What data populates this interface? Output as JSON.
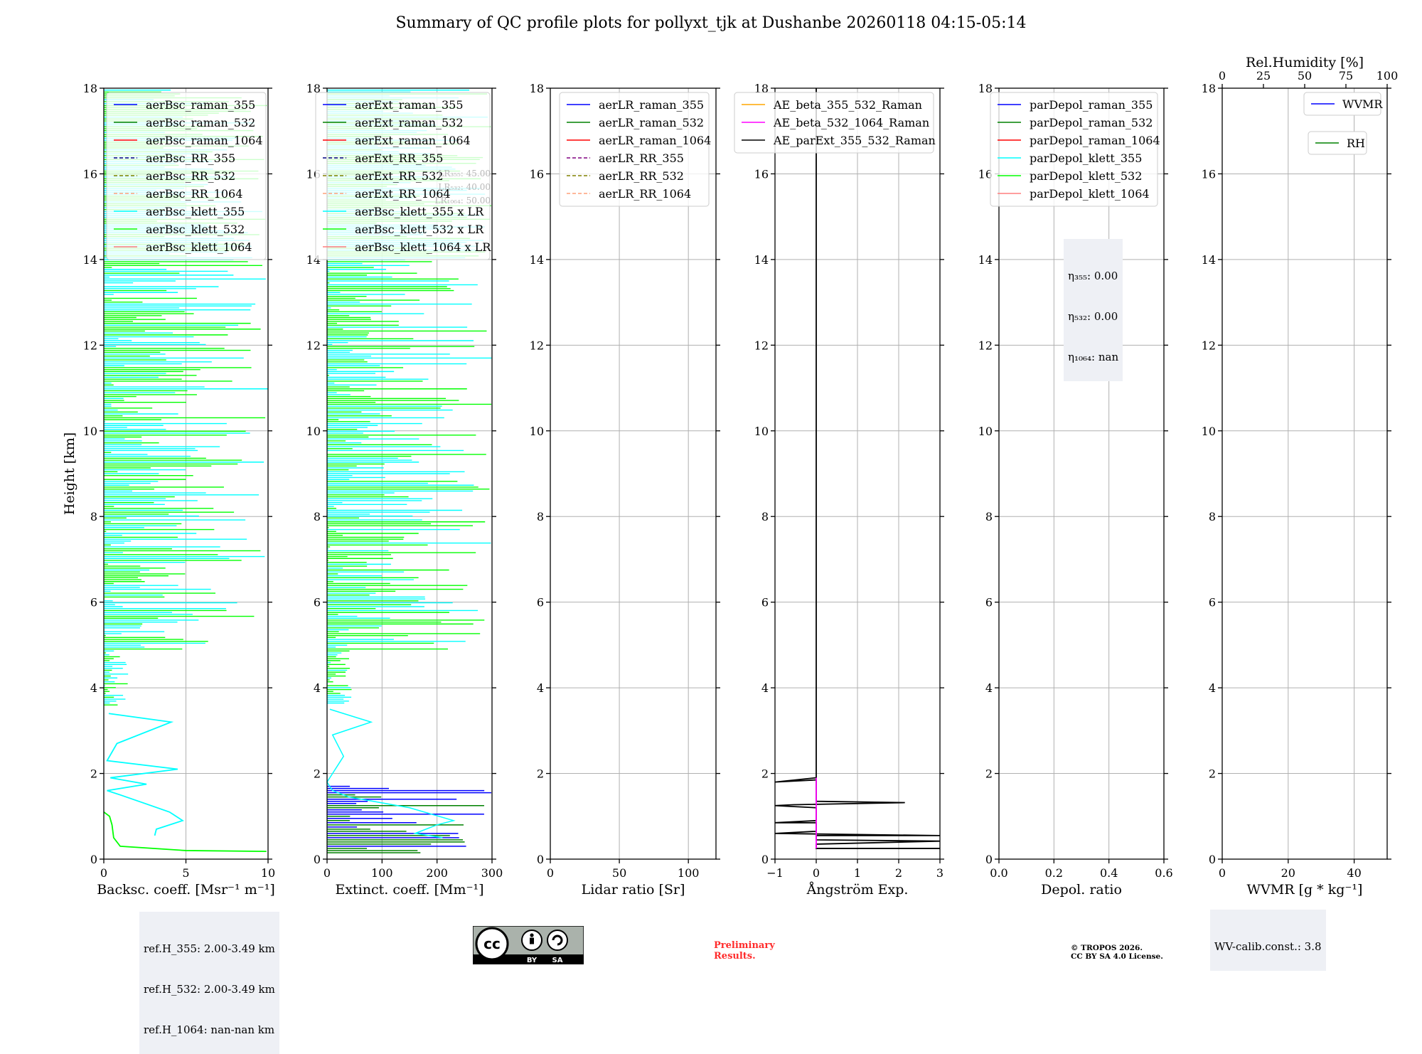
{
  "title": "Summary of QC profile plots for pollyxt_tjk at Dushanbe 20260118 04:15-05:14",
  "chart_data": [
    {
      "type": "line",
      "id": "bsc",
      "xlabel": "Backsc. coeff. [Msr⁻¹ m⁻¹]",
      "ylabel": "Height [km]",
      "xlim": [
        0,
        10
      ],
      "ylim": [
        0,
        18
      ],
      "xticks": [
        0,
        5,
        10
      ],
      "yticks": [
        0,
        2,
        4,
        6,
        8,
        10,
        12,
        14,
        16,
        18
      ],
      "legend": [
        {
          "name": "aerBsc_raman_355",
          "color": "#0000ff",
          "dash": false
        },
        {
          "name": "aerBsc_raman_532",
          "color": "#008000",
          "dash": false
        },
        {
          "name": "aerBsc_raman_1064",
          "color": "#ff0000",
          "dash": false
        },
        {
          "name": "aerBsc_RR_355",
          "color": "#000080",
          "dash": true
        },
        {
          "name": "aerBsc_RR_532",
          "color": "#808000",
          "dash": true
        },
        {
          "name": "aerBsc_RR_1064",
          "color": "#ffa07a",
          "dash": true
        },
        {
          "name": "aerBsc_klett_355",
          "color": "#00ffff",
          "dash": false
        },
        {
          "name": "aerBsc_klett_532",
          "color": "#00ff00",
          "dash": false
        },
        {
          "name": "aerBsc_klett_1064",
          "color": "#ff7f7f",
          "dash": false
        }
      ],
      "series": [
        {
          "name": "aerBsc_klett_532",
          "color": "#00ff00",
          "points": [
            [
              9.9,
              0.18
            ],
            [
              5,
              0.2
            ],
            [
              1,
              0.3
            ],
            [
              0.6,
              0.5
            ],
            [
              0.5,
              0.8
            ],
            [
              0.35,
              1.0
            ],
            [
              0,
              1.1
            ]
          ]
        },
        {
          "name": "aerBsc_klett_355",
          "color": "#00ffff",
          "points": [
            [
              3.1,
              0.55
            ],
            [
              3.2,
              0.7
            ],
            [
              4.8,
              0.9
            ],
            [
              4.0,
              1.1
            ],
            [
              2.5,
              1.3
            ],
            [
              1.0,
              1.5
            ],
            [
              0.2,
              1.6
            ],
            [
              2.6,
              1.75
            ],
            [
              0.4,
              1.9
            ],
            [
              4.5,
              2.1
            ],
            [
              0.2,
              2.3
            ],
            [
              0.8,
              2.7
            ],
            [
              4.1,
              3.2
            ],
            [
              0.3,
              3.4
            ]
          ]
        }
      ],
      "info": [
        "ref.H_355: 2.00-3.49 km",
        "ref.H_532: 2.00-3.49 km",
        "ref.H_1064: nan-nan km"
      ]
    },
    {
      "type": "line",
      "id": "ext",
      "xlabel": "Extinct. coeff. [Mm⁻¹]",
      "xlim": [
        0,
        300
      ],
      "ylim": [
        0,
        18
      ],
      "xticks": [
        0,
        100,
        200,
        300
      ],
      "yticks": [
        0,
        2,
        4,
        6,
        8,
        10,
        12,
        14,
        16,
        18
      ],
      "legend": [
        {
          "name": "aerExt_raman_355",
          "color": "#0000ff",
          "dash": false
        },
        {
          "name": "aerExt_raman_532",
          "color": "#008000",
          "dash": false
        },
        {
          "name": "aerExt_raman_1064",
          "color": "#ff0000",
          "dash": false
        },
        {
          "name": "aerExt_RR_355",
          "color": "#000080",
          "dash": true
        },
        {
          "name": "aerExt_RR_532",
          "color": "#808000",
          "dash": true
        },
        {
          "name": "aerExt_RR_1064",
          "color": "#ffa07a",
          "dash": true
        },
        {
          "name": "aerBsc_klett_355 x LR",
          "color": "#00ffff",
          "dash": false
        },
        {
          "name": "aerBsc_klett_532 x LR",
          "color": "#00ff00",
          "dash": false
        },
        {
          "name": "aerBsc_klett_1064 x LR",
          "color": "#ff7f7f",
          "dash": false
        }
      ],
      "lr_labels": [
        "LR₃₅₅: 45.00",
        "LR₅₃₂: 40.00",
        "LR₁₀₆₄: 50.00"
      ]
    },
    {
      "type": "line",
      "id": "lr",
      "xlabel": "Lidar ratio [Sr]",
      "xlim": [
        0,
        120
      ],
      "ylim": [
        0,
        18
      ],
      "xticks": [
        0,
        50,
        100
      ],
      "yticks": [
        0,
        2,
        4,
        6,
        8,
        10,
        12,
        14,
        16,
        18
      ],
      "legend": [
        {
          "name": "aerLR_raman_355",
          "color": "#0000ff",
          "dash": false
        },
        {
          "name": "aerLR_raman_532",
          "color": "#008000",
          "dash": false
        },
        {
          "name": "aerLR_raman_1064",
          "color": "#ff0000",
          "dash": false
        },
        {
          "name": "aerLR_RR_355",
          "color": "#800080",
          "dash": true
        },
        {
          "name": "aerLR_RR_532",
          "color": "#808000",
          "dash": true
        },
        {
          "name": "aerLR_RR_1064",
          "color": "#ffa07a",
          "dash": true
        }
      ]
    },
    {
      "type": "line",
      "id": "ae",
      "xlabel": "Ångström Exp.",
      "xlim": [
        -1,
        3
      ],
      "ylim": [
        0,
        18
      ],
      "xticks": [
        -1,
        0,
        1,
        2,
        3
      ],
      "yticks": [
        0,
        2,
        4,
        6,
        8,
        10,
        12,
        14,
        16,
        18
      ],
      "legend": [
        {
          "name": "AE_beta_355_532_Raman",
          "color": "#ffa500",
          "dash": false
        },
        {
          "name": "AE_beta_532_1064_Raman",
          "color": "#ff00ff",
          "dash": false
        },
        {
          "name": "AE_parExt_355_532_Raman",
          "color": "#000000",
          "dash": false
        }
      ],
      "series": [
        {
          "name": "AE_parExt_355_532_Raman",
          "color": "#000000",
          "points": [
            [
              3,
              0.25
            ],
            [
              0,
              0.25
            ],
            [
              0,
              0.35
            ],
            [
              3,
              0.42
            ],
            [
              0,
              0.45
            ],
            [
              0,
              0.55
            ],
            [
              3,
              0.55
            ],
            [
              -1,
              0.6
            ],
            [
              0,
              0.65
            ],
            [
              0,
              0.85
            ],
            [
              -0.5,
              0.85
            ],
            [
              -1,
              0.85
            ],
            [
              0,
              0.9
            ],
            [
              0,
              1.2
            ],
            [
              -1,
              1.25
            ],
            [
              -0.55,
              1.27
            ],
            [
              2.15,
              1.32
            ],
            [
              0,
              1.35
            ],
            [
              0,
              1.85
            ],
            [
              -1,
              1.8
            ],
            [
              0,
              1.9
            ],
            [
              0,
              18
            ]
          ]
        },
        {
          "name": "AE_beta_532_1064_Raman",
          "color": "#ff00ff",
          "points": [
            [
              0,
              0.25
            ],
            [
              0,
              1.9
            ]
          ]
        }
      ]
    },
    {
      "type": "line",
      "id": "depol",
      "xlabel": "Depol. ratio",
      "xlim": [
        0,
        0.6
      ],
      "ylim": [
        0,
        18
      ],
      "xticks": [
        0.0,
        0.2,
        0.4,
        0.6
      ],
      "yticks": [
        0,
        2,
        4,
        6,
        8,
        10,
        12,
        14,
        16,
        18
      ],
      "legend": [
        {
          "name": "parDepol_raman_355",
          "color": "#0000ff",
          "dash": false
        },
        {
          "name": "parDepol_raman_532",
          "color": "#008000",
          "dash": false
        },
        {
          "name": "parDepol_raman_1064",
          "color": "#ff0000",
          "dash": false
        },
        {
          "name": "parDepol_klett_355",
          "color": "#00ffff",
          "dash": false
        },
        {
          "name": "parDepol_klett_532",
          "color": "#00ff00",
          "dash": false
        },
        {
          "name": "parDepol_klett_1064",
          "color": "#ff7f7f",
          "dash": false
        }
      ],
      "eta": [
        "η₃₅₅: 0.00",
        "η₅₃₂: 0.00",
        "η₁₀₆₄: nan"
      ]
    },
    {
      "type": "line",
      "id": "wv",
      "xlabel": "WVMR [g * kg⁻¹]",
      "top_xlabel": "Rel.Humidity [%]",
      "xlim": [
        0,
        50
      ],
      "ylim": [
        0,
        18
      ],
      "top_xlim": [
        0,
        100
      ],
      "xticks": [
        0,
        20,
        40
      ],
      "top_xticks": [
        0,
        25,
        50,
        75,
        100
      ],
      "yticks": [
        0,
        2,
        4,
        6,
        8,
        10,
        12,
        14,
        16,
        18
      ],
      "legend": [
        {
          "name": "WVMR",
          "color": "#0000ff",
          "dash": false
        },
        {
          "name": "RH",
          "color": "#008000",
          "dash": false
        }
      ],
      "info": [
        "WV-calib.const.: 3.8"
      ]
    }
  ],
  "footer": {
    "preliminary": [
      "Preliminary",
      "Results."
    ],
    "copyright": [
      "© TROPOS 2026.",
      "CC BY SA 4.0 License."
    ],
    "cc_labels": [
      "BY",
      "SA"
    ]
  }
}
